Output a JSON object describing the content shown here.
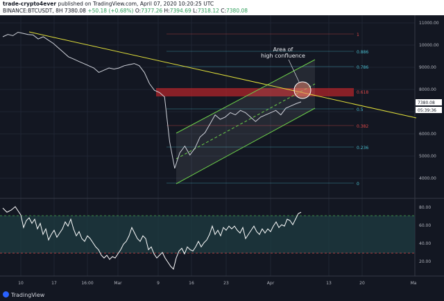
{
  "header": {
    "author": "trade-crypto4ever",
    "published": "published on TradingView.com, April 07, 2020 10:20:25 UTC",
    "symbol": "BINANCE:BTCUSDT, 8H",
    "price": "7380.08",
    "change": "+50.18 (+0.68%)",
    "open_label": "O:",
    "open": "7377.26",
    "high_label": "H:",
    "high": "7394.69",
    "low_label": "L:",
    "low": "7318.12",
    "close_label": "C:",
    "close": "7380.08"
  },
  "price_axis": {
    "ticks": [
      "11000.00",
      "10000.00",
      "9000.00",
      "8000.00",
      "7000.00",
      "6000.00",
      "5000.00",
      "4000.00"
    ],
    "last_price": "7380.08",
    "countdown": "05:39:36"
  },
  "indicator_axis": {
    "ticks": [
      "80.00",
      "60.00",
      "40.00",
      "20.00"
    ]
  },
  "time_axis": {
    "ticks": [
      "10",
      "17",
      "16:00",
      "Mar",
      "9",
      "16",
      "23",
      "Apr",
      "13",
      "20",
      "Ma"
    ]
  },
  "fib_levels": [
    "1",
    "0.886",
    "0.786",
    "0.618",
    "0.5",
    "0.382",
    "0.236",
    "0"
  ],
  "annotation": {
    "line1": "Area of",
    "line2": "high confluence"
  },
  "footer": {
    "brand": "TradingView"
  },
  "colors": {
    "background": "#131722",
    "trendline": "#e2e03a",
    "channel": "#6cd04a",
    "fib_red": "#e04848",
    "fib_teal": "#4bbfd0",
    "rsi_band": "#1e3a40"
  },
  "chart_data": {
    "type": "line",
    "series": [
      {
        "values": [
          10300,
          10400,
          10350,
          10500,
          10450,
          10400,
          10380,
          10200,
          10300,
          10150,
          10000,
          9800,
          9600,
          9400,
          9300,
          9200,
          9100,
          9000,
          8900,
          8700,
          8800,
          8900,
          8850,
          8900,
          9000,
          9050,
          9100,
          9000,
          8700,
          8200,
          7900,
          7800,
          7600,
          5600,
          4400,
          5100,
          5400,
          5000,
          5300,
          5800,
          6000,
          6400,
          6800,
          6600,
          6700,
          6900,
          6800,
          7000,
          6900,
          6700,
          6500,
          6700,
          6800,
          6900,
          7000,
          6800,
          7100,
          7200,
          7300,
          7380
        ]
      }
    ],
    "ylim": [
      3400,
      11200
    ]
  }
}
